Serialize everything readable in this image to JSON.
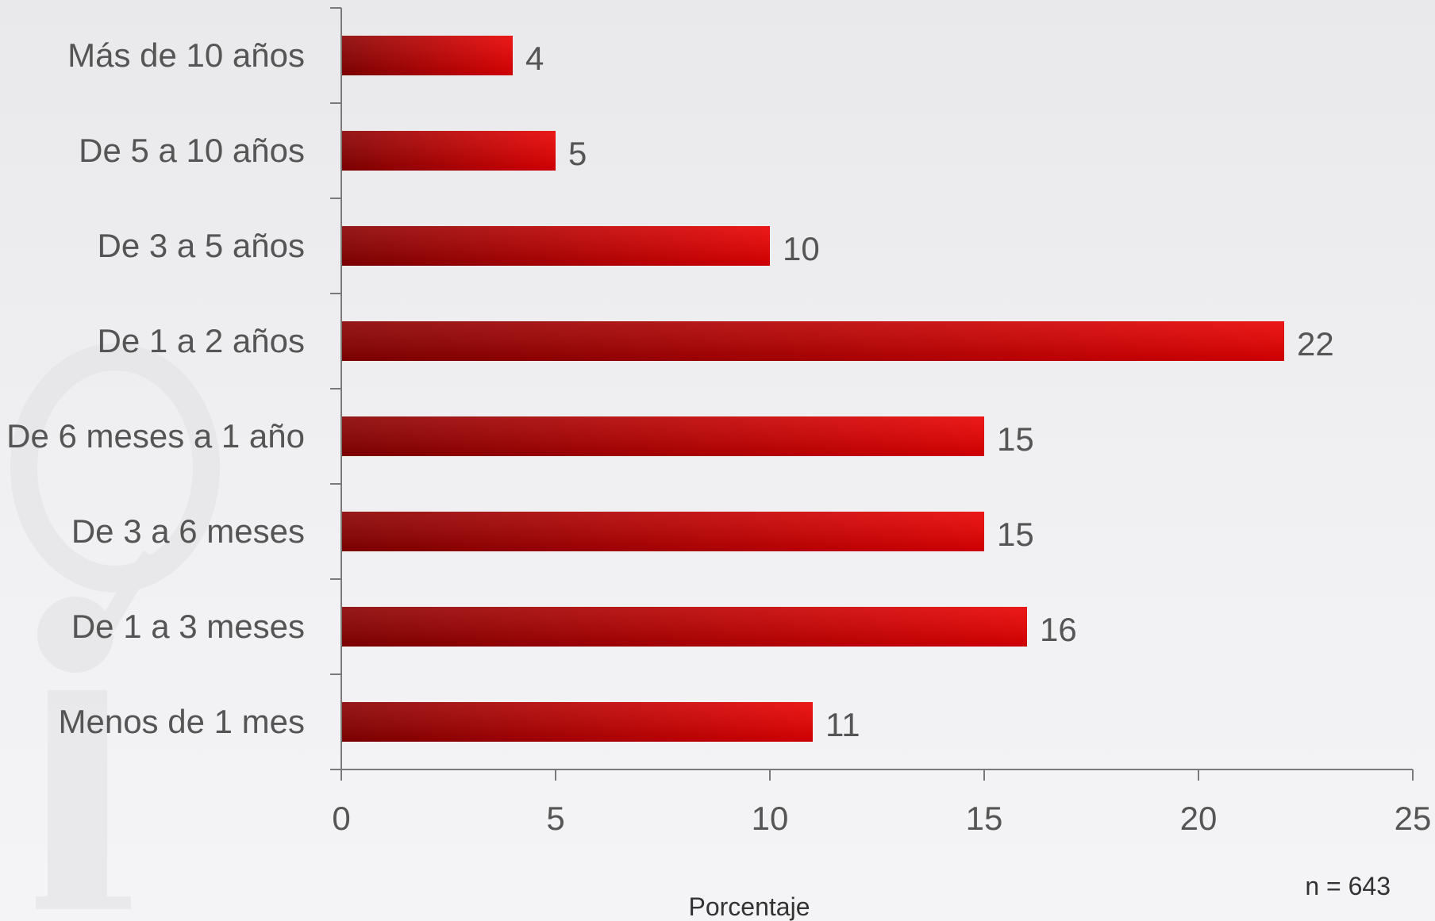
{
  "chart_data": {
    "type": "bar",
    "orientation": "horizontal",
    "categories": [
      "Más de 10 años",
      "De 5 a 10 años",
      "De 3 a 5 años",
      "De 1 a 2 años",
      "De 6 meses a 1 año",
      "De 3 a 6 meses",
      "De 1 a 3 meses",
      "Menos de 1 mes"
    ],
    "values": [
      4,
      5,
      10,
      22,
      15,
      15,
      16,
      11
    ],
    "xlabel": "Porcentaje",
    "xlim": [
      0,
      25
    ],
    "xticks": [
      0,
      5,
      10,
      15,
      20,
      25
    ],
    "grid": false,
    "bar_color_dark": "#8a0000",
    "bar_color_light": "#e80000",
    "note": "n = 643"
  }
}
